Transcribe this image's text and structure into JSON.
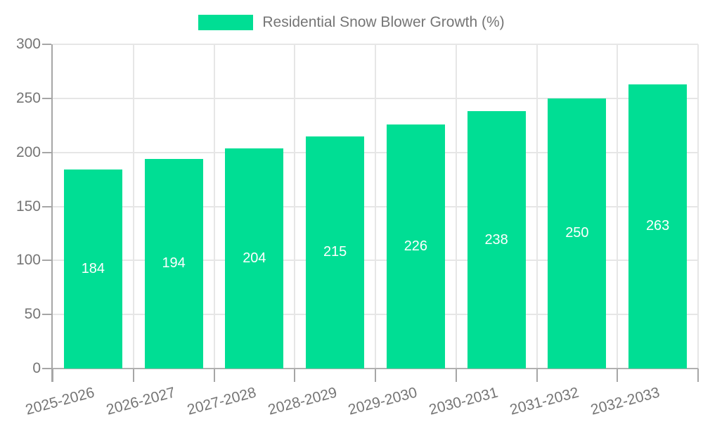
{
  "chart_data": {
    "type": "bar",
    "title": "",
    "series_name": "Residential Snow Blower Growth (%)",
    "categories": [
      "2025-2026",
      "2026-2027",
      "2027-2028",
      "2028-2029",
      "2029-2030",
      "2030-2031",
      "2031-2032",
      "2032-2033"
    ],
    "values": [
      184,
      194,
      204,
      215,
      226,
      238,
      250,
      263
    ],
    "xlabel": "",
    "ylabel": "",
    "ylim": [
      0,
      300
    ],
    "yticks": [
      0,
      50,
      100,
      150,
      200,
      250,
      300
    ],
    "grid": true,
    "legend_position": "top-center",
    "bar_color": "#00de94",
    "value_label_color": "#ffffff",
    "axis_color": "#a6a6a6",
    "gridline_color": "#e6e6e6",
    "tick_label_color": "#757575"
  }
}
